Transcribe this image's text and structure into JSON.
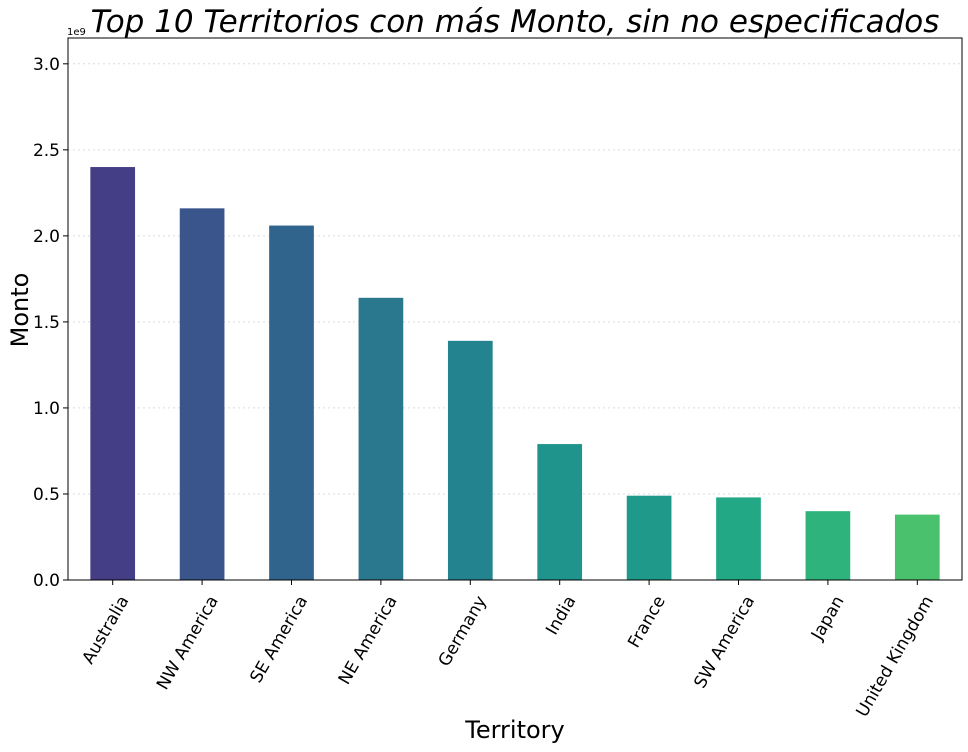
{
  "chart_data": {
    "type": "bar",
    "title": "Top 10 Territorios con más Monto, sin no especificados",
    "xlabel": "Territory",
    "ylabel": "Monto",
    "y_scale_label": "1e9",
    "ylim": [
      0,
      3.15
    ],
    "yticks": [
      0.0,
      0.5,
      1.0,
      1.5,
      2.0,
      2.5,
      3.0
    ],
    "ytick_labels": [
      "0.0",
      "0.5",
      "1.0",
      "1.5",
      "2.0",
      "2.5",
      "3.0"
    ],
    "grid": true,
    "categories": [
      "Australia",
      "NW America",
      "SE America",
      "NE America",
      "Germany",
      "India",
      "France",
      "SW America",
      "Japan",
      "United Kingdom"
    ],
    "values": [
      2.4,
      2.16,
      2.06,
      1.64,
      1.39,
      0.79,
      0.49,
      0.48,
      0.4,
      0.38
    ],
    "colors": [
      "#433e85",
      "#3a548c",
      "#31648d",
      "#2a788e",
      "#23838e",
      "#1f948c",
      "#1f9a8a",
      "#22a884",
      "#2eb37c",
      "#4ac16d"
    ]
  }
}
